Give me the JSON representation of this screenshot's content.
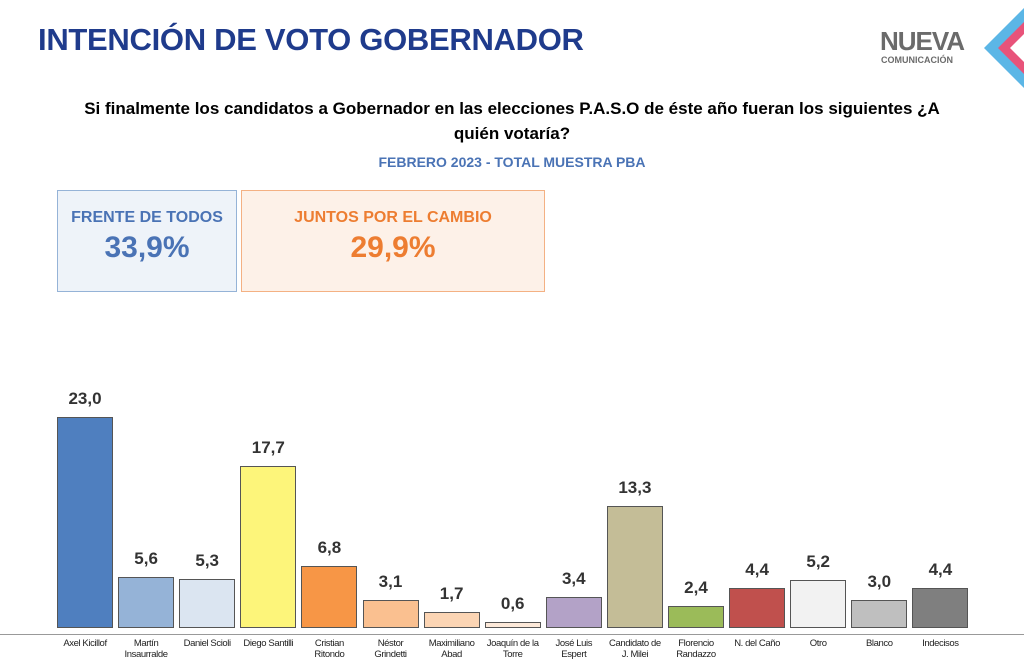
{
  "chart_data": {
    "type": "bar",
    "title": "INTENCIÓN DE VOTO GOBERNADOR",
    "subtitle": "Si finalmente los candidatos a Gobernador en las elecciones P.A.S.O de éste año fueran los siguientes ¿A quién votaría?",
    "note": "FEBRERO 2023 - TOTAL MUESTRA PBA",
    "logo": {
      "name": "NUEVA",
      "tagline": "COMUNICACIÓN"
    },
    "annotations": [
      {
        "label": "FRENTE DE TODOS",
        "value": "33,9%",
        "color": "#4a73b5"
      },
      {
        "label": "JUNTOS POR EL CAMBIO",
        "value": "29,9%",
        "color": "#ed7d31"
      }
    ],
    "categories": [
      "Axel Kicillof",
      "Martín Insaurralde",
      "Daniel Scioli",
      "Diego Santilli",
      "Cristian Ritondo",
      "Néstor Grindetti",
      "Maximiliano Abad",
      "Joaquín de la Torre",
      "José Luis Espert",
      "Candidato de J. Milei",
      "Florencio Randazzo",
      "N. del Caño",
      "Otro",
      "Blanco",
      "Indecisos"
    ],
    "values": [
      23.0,
      5.6,
      5.3,
      17.7,
      6.8,
      3.1,
      1.7,
      0.6,
      3.4,
      13.3,
      2.4,
      4.4,
      5.2,
      3.0,
      4.4
    ],
    "value_labels": [
      "23,0",
      "5,6",
      "5,3",
      "17,7",
      "6,8",
      "3,1",
      "1,7",
      "0,6",
      "3,4",
      "13,3",
      "2,4",
      "4,4",
      "5,2",
      "3,0",
      "4,4"
    ],
    "colors": [
      "#4f7fbf",
      "#95b3d7",
      "#dbe5f1",
      "#fdf57a",
      "#f79646",
      "#fac090",
      "#fcd5b4",
      "#fde9d9",
      "#b3a2c7",
      "#c4bd97",
      "#9bbb59",
      "#c0504d",
      "#f2f2f2",
      "#bfbfbf",
      "#7f7f7f"
    ]
  }
}
